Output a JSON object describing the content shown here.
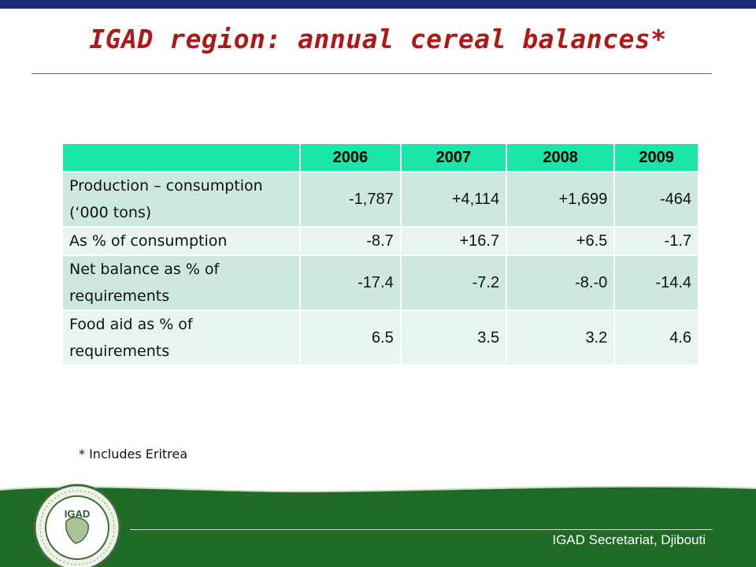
{
  "slide": {
    "title": "IGAD region: annual cereal balances*",
    "footnote": "* Includes Eritrea",
    "footer_text": "IGAD Secretariat, Djibouti",
    "logo": {
      "name": "igad-seal",
      "text": "IGAD",
      "ring_text": "INTERGOVERNMENTAL AUTHORITY ON DEVELOPMENT"
    }
  },
  "table": {
    "years": [
      "2006",
      "2007",
      "2008",
      "2009"
    ],
    "rows": [
      {
        "label_line1": "Production – consumption",
        "label_line2": "(‘000 tons)",
        "values": [
          "-1,787",
          "+4,114",
          "+1,699",
          "-464"
        ]
      },
      {
        "label_line1": "As % of consumption",
        "label_line2": "",
        "values": [
          "-8.7",
          "+16.7",
          "+6.5",
          "-1.7"
        ]
      },
      {
        "label_line1": "Net balance as % of",
        "label_line2": "requirements",
        "values": [
          "-17.4",
          "-7.2",
          "-8.-0",
          "-14.4"
        ]
      },
      {
        "label_line1": "Food aid as % of",
        "label_line2": "requirements",
        "values": [
          "6.5",
          "3.5",
          "3.2",
          "4.6"
        ]
      }
    ]
  },
  "colors": {
    "top_bar": "#1d2a7a",
    "title": "#b01818",
    "table_header": "#19e6a6",
    "row_dark": "#cde8de",
    "row_light": "#e8f4ee",
    "footer_green": "#1f6b25"
  }
}
